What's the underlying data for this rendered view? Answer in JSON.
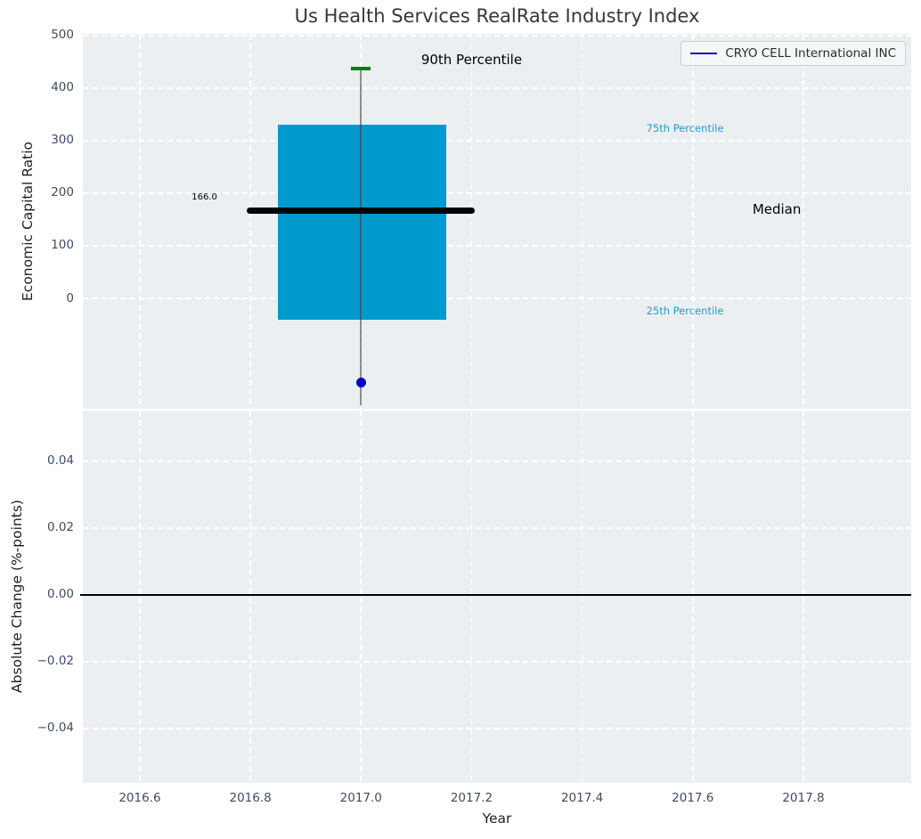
{
  "title": "Us Health Services RealRate Industry Index",
  "legend": {
    "label": "CRYO CELL International INC"
  },
  "colors": {
    "box": "#009acd",
    "median": "#000000",
    "cap_90th": "#008000",
    "whisker": "rgba(68,68,68,0.6)",
    "company": "#0000cd",
    "percentile_text": "#1e9cc9",
    "grid": "#ffffff",
    "axes_bg": "#eceff1",
    "tick": "#3d4c63",
    "zero_line": "#000000"
  },
  "chart_data": [
    {
      "type": "boxplot-timeseries",
      "title": "Us Health Services RealRate Industry Index",
      "xlabel": "Year",
      "ylabel": "Economic Capital Ratio",
      "xlim": [
        2016.497,
        2017.995
      ],
      "ylim": [
        -210,
        503
      ],
      "grid": "white dashed, on",
      "legend_position": "upper right",
      "xticks": [
        {
          "v": 2016.6,
          "label": "2016.6"
        },
        {
          "v": 2016.8,
          "label": "2016.8"
        },
        {
          "v": 2017.0,
          "label": "2017.0"
        },
        {
          "v": 2017.2,
          "label": "2017.2"
        },
        {
          "v": 2017.4,
          "label": "2017.4"
        },
        {
          "v": 2017.6,
          "label": "2017.6"
        },
        {
          "v": 2017.8,
          "label": "2017.8"
        }
      ],
      "yticks": [
        {
          "v": 500,
          "label": "500"
        },
        {
          "v": 400,
          "label": "400"
        },
        {
          "v": 300,
          "label": "300"
        },
        {
          "v": 200,
          "label": "200"
        },
        {
          "v": 100,
          "label": "100"
        },
        {
          "v": 0,
          "label": "0"
        }
      ],
      "box": {
        "x_center": 2017.0,
        "x_left": 2016.85,
        "x_right": 2017.155,
        "q1_25th": -40,
        "median": 166,
        "q3_75th": 330,
        "p90": 437,
        "whisker_low": -203
      },
      "median_line": {
        "x_left": 2016.8,
        "x_right": 2017.2,
        "value": 166
      },
      "series": [
        {
          "name": "CRYO CELL International INC",
          "type": "scatter",
          "points": [
            {
              "x": 2017.0,
              "y": -160
            }
          ]
        }
      ],
      "annotations": [
        {
          "text": "90th Percentile",
          "x": 2017.2,
          "y": 451,
          "color": "#000000",
          "size": 15,
          "align": "center"
        },
        {
          "text": "166.0",
          "x": 2016.74,
          "y": 190,
          "color": "#000000",
          "size": 10,
          "align": "right"
        },
        {
          "text": "75th Percentile",
          "x": 2017.516,
          "y": 320,
          "color": "#1e9cc9",
          "size": 11.5,
          "align": "left"
        },
        {
          "text": "Median",
          "x": 2017.708,
          "y": 166,
          "color": "#000000",
          "size": 15,
          "align": "left"
        },
        {
          "text": "25th Percentile",
          "x": 2017.516,
          "y": -27,
          "color": "#1e9cc9",
          "size": 11.5,
          "align": "left"
        }
      ]
    },
    {
      "type": "line",
      "xlabel": "Year",
      "ylabel": "Absolute Change (%-points)",
      "xlim": [
        2016.497,
        2017.995
      ],
      "ylim": [
        -0.0563,
        0.0552
      ],
      "grid": "white dashed, on",
      "yticks": [
        {
          "v": 0.04,
          "label": "0.04"
        },
        {
          "v": 0.02,
          "label": "0.02"
        },
        {
          "v": 0.0,
          "label": "0.00"
        },
        {
          "v": -0.02,
          "label": "−0.02"
        },
        {
          "v": -0.04,
          "label": "−0.04"
        }
      ],
      "zero_line_value": 0.0,
      "series": []
    }
  ]
}
